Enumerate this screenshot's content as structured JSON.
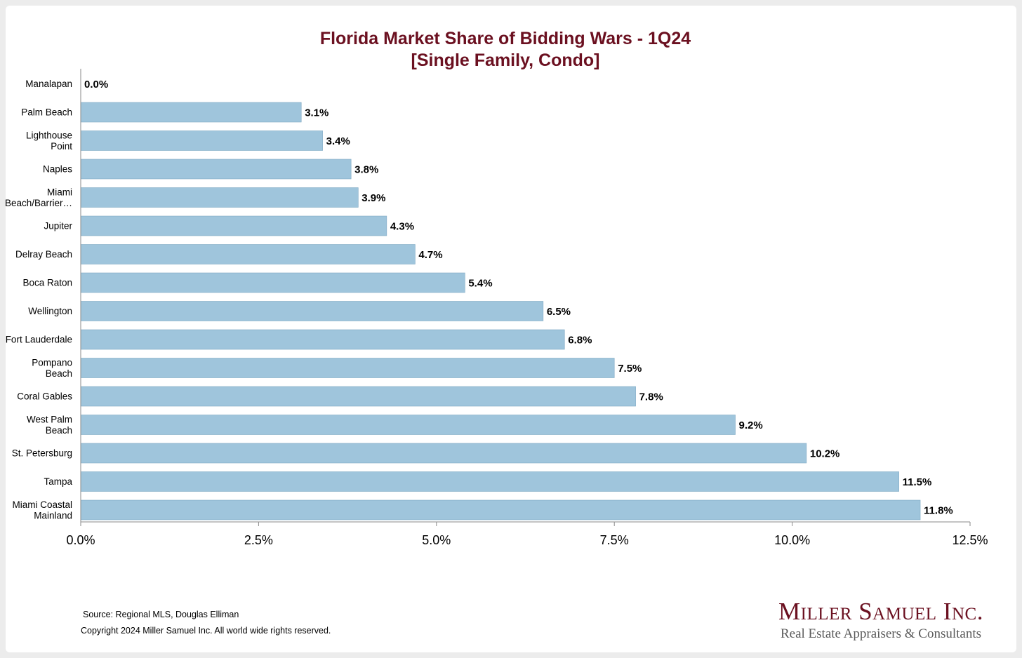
{
  "chart_data": {
    "type": "bar",
    "orientation": "horizontal",
    "title_line1": "Florida Market Share of Bidding Wars - 1Q24",
    "title_line2": "[Single Family, Condo]",
    "categories": [
      [
        "Manalapan"
      ],
      [
        "Palm Beach"
      ],
      [
        "Lighthouse",
        "Point"
      ],
      [
        "Naples"
      ],
      [
        "Miami",
        "Beach/Barrier…"
      ],
      [
        "Jupiter"
      ],
      [
        "Delray Beach"
      ],
      [
        "Boca Raton"
      ],
      [
        "Wellington"
      ],
      [
        "Fort Lauderdale"
      ],
      [
        "Pompano",
        "Beach"
      ],
      [
        "Coral Gables"
      ],
      [
        "West Palm",
        "Beach"
      ],
      [
        "St. Petersburg"
      ],
      [
        "Tampa"
      ],
      [
        "Miami Coastal",
        "Mainland"
      ]
    ],
    "values": [
      0.0,
      3.1,
      3.4,
      3.8,
      3.9,
      4.3,
      4.7,
      5.4,
      6.5,
      6.8,
      7.5,
      7.8,
      9.2,
      10.2,
      11.5,
      11.8
    ],
    "value_labels": [
      "0.0%",
      "3.1%",
      "3.4%",
      "3.8%",
      "3.9%",
      "4.3%",
      "4.7%",
      "5.4%",
      "6.5%",
      "6.8%",
      "7.5%",
      "7.8%",
      "9.2%",
      "10.2%",
      "11.5%",
      "11.8%"
    ],
    "xlim": [
      0,
      12.5
    ],
    "xticks": [
      0,
      2.5,
      5.0,
      7.5,
      10.0,
      12.5
    ],
    "xtick_labels": [
      "0.0%",
      "2.5%",
      "5.0%",
      "7.5%",
      "10.0%",
      "12.5%"
    ],
    "xlabel": "",
    "ylabel": "",
    "grid": false,
    "legend": "none"
  },
  "colors": {
    "bar_fill": "#9fc5dc",
    "bar_stroke": "#7fa9c4",
    "title": "#6b1020",
    "axis": "#8a8a8a"
  },
  "footer": {
    "source": "Source: Regional MLS, Douglas Elliman",
    "copyright": "Copyright 2024 Miller Samuel Inc.  All world wide rights reserved."
  },
  "logo": {
    "name": "Miller Samuel Inc.",
    "tagline": "Real Estate Appraisers & Consultants"
  }
}
